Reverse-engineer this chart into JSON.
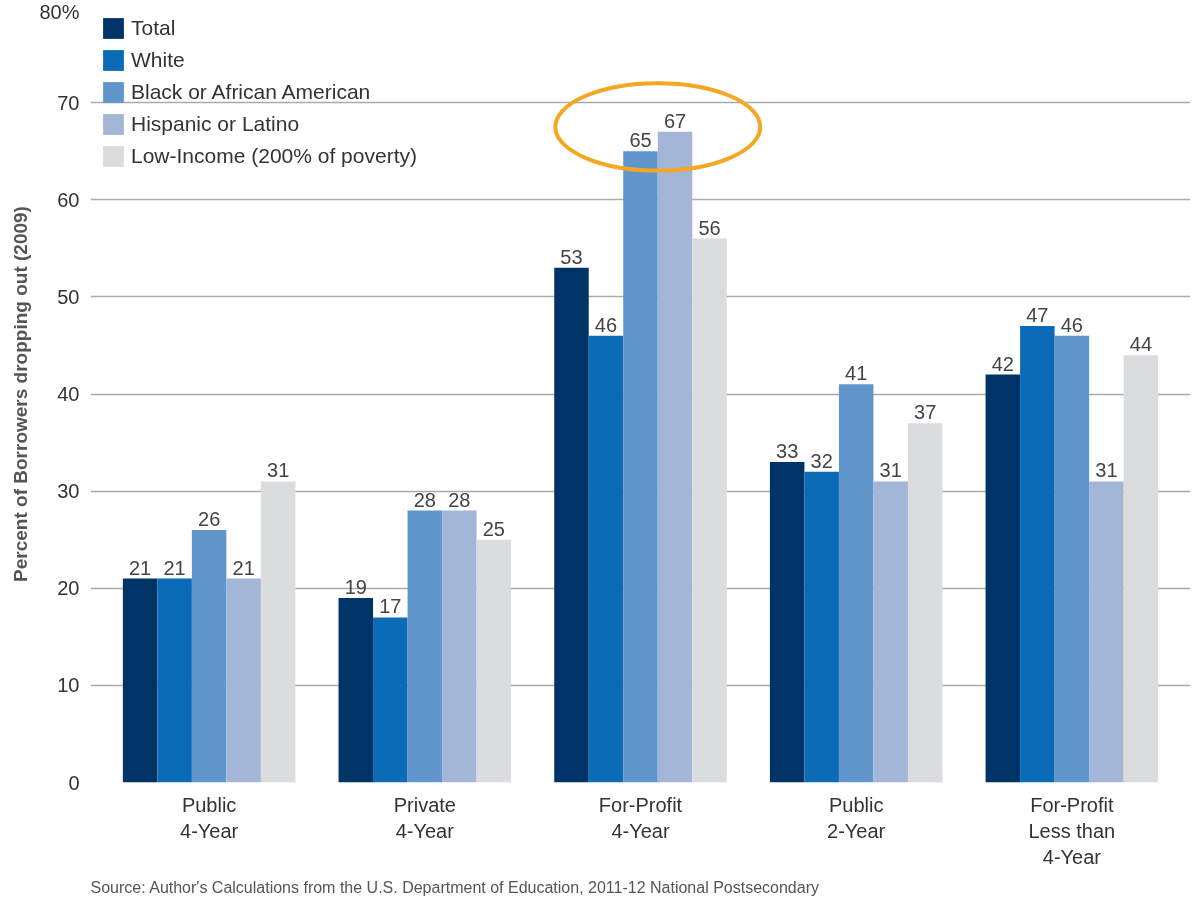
{
  "chart_data": {
    "type": "bar",
    "ylabel": "Percent of Borrowers dropping out (2009)",
    "categories": [
      "Public\n4-Year",
      "Private\n4-Year",
      "For-Profit\n4-Year",
      "Public\n2-Year",
      "For-Profit\nLess than\n4-Year"
    ],
    "series": [
      {
        "name": "Total",
        "color": "#003366",
        "values": [
          21,
          19,
          53,
          33,
          42
        ]
      },
      {
        "name": "White",
        "color": "#0c6bb7",
        "values": [
          21,
          17,
          46,
          32,
          47
        ]
      },
      {
        "name": "Black or African American",
        "color": "#6096cb",
        "values": [
          26,
          28,
          65,
          41,
          46
        ]
      },
      {
        "name": "Hispanic or Latino",
        "color": "#a3b6d8",
        "values": [
          21,
          28,
          67,
          31,
          31
        ]
      },
      {
        "name": "Low-Income (200% of poverty)",
        "color": "#dbdcde",
        "values": [
          31,
          25,
          56,
          37,
          44
        ]
      }
    ],
    "ylim": [
      0,
      80
    ],
    "yticks": [
      0,
      10,
      20,
      30,
      40,
      50,
      60,
      70,
      {
        "value": 80,
        "label": "80%"
      }
    ],
    "grid": "y",
    "legend": "top left",
    "data_labels": true,
    "annotations": [
      "Source: Author's Calculations from the U.S. Department of Education, 2011-12 National Postsecondary"
    ]
  }
}
